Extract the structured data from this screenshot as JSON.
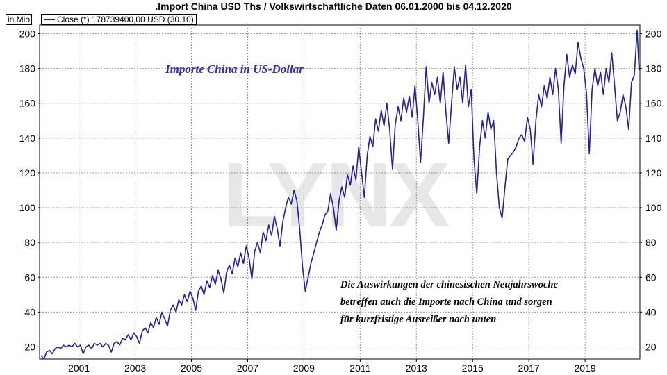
{
  "chart_data": {
    "type": "line",
    "title": ".Import China USD Ths / Volkswirtschaftliche Daten 06.01.2000 bis 04.12.2020",
    "ylabel": "in Mio",
    "legend": "Close (*) 178739400,00 USD (30.10)",
    "ylim": [
      13,
      205
    ],
    "xlim": [
      1999.6,
      2020.95
    ],
    "yticks": [
      20,
      40,
      60,
      80,
      100,
      120,
      140,
      160,
      180,
      200
    ],
    "xticks": [
      "2001",
      "2003",
      "2005",
      "2007",
      "2009",
      "2011",
      "2013",
      "2015",
      "2017",
      "2019"
    ],
    "xtick_values": [
      2001,
      2003,
      2005,
      2007,
      2009,
      2011,
      2013,
      2015,
      2017,
      2019
    ],
    "grid": true,
    "series": [
      {
        "name": "Close (*)",
        "color": "#1f1fa8",
        "points": [
          [
            1999.65,
            15
          ],
          [
            1999.75,
            13
          ],
          [
            1999.85,
            17
          ],
          [
            1999.95,
            18
          ],
          [
            2000.05,
            16
          ],
          [
            2000.15,
            19
          ],
          [
            2000.25,
            20
          ],
          [
            2000.35,
            19
          ],
          [
            2000.45,
            21
          ],
          [
            2000.55,
            20
          ],
          [
            2000.65,
            21
          ],
          [
            2000.75,
            20
          ],
          [
            2000.85,
            22
          ],
          [
            2000.95,
            20
          ],
          [
            2001.05,
            21
          ],
          [
            2001.15,
            16
          ],
          [
            2001.25,
            20
          ],
          [
            2001.35,
            21
          ],
          [
            2001.45,
            19
          ],
          [
            2001.55,
            22
          ],
          [
            2001.65,
            21
          ],
          [
            2001.75,
            22
          ],
          [
            2001.85,
            20
          ],
          [
            2001.95,
            22
          ],
          [
            2002.05,
            21
          ],
          [
            2002.15,
            17
          ],
          [
            2002.25,
            22
          ],
          [
            2002.35,
            23
          ],
          [
            2002.45,
            21
          ],
          [
            2002.55,
            25
          ],
          [
            2002.65,
            24
          ],
          [
            2002.75,
            27
          ],
          [
            2002.85,
            24
          ],
          [
            2002.95,
            28
          ],
          [
            2003.05,
            26
          ],
          [
            2003.15,
            22
          ],
          [
            2003.25,
            29
          ],
          [
            2003.35,
            31
          ],
          [
            2003.45,
            28
          ],
          [
            2003.55,
            34
          ],
          [
            2003.65,
            31
          ],
          [
            2003.75,
            37
          ],
          [
            2003.85,
            33
          ],
          [
            2003.95,
            40
          ],
          [
            2004.05,
            36
          ],
          [
            2004.15,
            32
          ],
          [
            2004.25,
            41
          ],
          [
            2004.35,
            44
          ],
          [
            2004.45,
            40
          ],
          [
            2004.55,
            47
          ],
          [
            2004.65,
            44
          ],
          [
            2004.75,
            50
          ],
          [
            2004.85,
            46
          ],
          [
            2004.95,
            52
          ],
          [
            2005.05,
            48
          ],
          [
            2005.15,
            41
          ],
          [
            2005.25,
            52
          ],
          [
            2005.35,
            55
          ],
          [
            2005.45,
            50
          ],
          [
            2005.55,
            58
          ],
          [
            2005.65,
            54
          ],
          [
            2005.75,
            61
          ],
          [
            2005.85,
            56
          ],
          [
            2005.95,
            64
          ],
          [
            2006.05,
            59
          ],
          [
            2006.15,
            51
          ],
          [
            2006.25,
            63
          ],
          [
            2006.35,
            67
          ],
          [
            2006.45,
            62
          ],
          [
            2006.55,
            71
          ],
          [
            2006.65,
            66
          ],
          [
            2006.75,
            74
          ],
          [
            2006.85,
            68
          ],
          [
            2006.95,
            78
          ],
          [
            2007.05,
            71
          ],
          [
            2007.15,
            59
          ],
          [
            2007.25,
            75
          ],
          [
            2007.35,
            80
          ],
          [
            2007.45,
            74
          ],
          [
            2007.55,
            86
          ],
          [
            2007.65,
            81
          ],
          [
            2007.75,
            90
          ],
          [
            2007.85,
            84
          ],
          [
            2007.95,
            95
          ],
          [
            2008.05,
            88
          ],
          [
            2008.15,
            78
          ],
          [
            2008.25,
            92
          ],
          [
            2008.35,
            100
          ],
          [
            2008.45,
            106
          ],
          [
            2008.55,
            102
          ],
          [
            2008.65,
            110
          ],
          [
            2008.75,
            104
          ],
          [
            2008.85,
            88
          ],
          [
            2008.95,
            66
          ],
          [
            2009.05,
            52
          ],
          [
            2009.15,
            60
          ],
          [
            2009.25,
            68
          ],
          [
            2009.35,
            74
          ],
          [
            2009.45,
            80
          ],
          [
            2009.55,
            86
          ],
          [
            2009.65,
            90
          ],
          [
            2009.75,
            96
          ],
          [
            2009.85,
            98
          ],
          [
            2009.95,
            108
          ],
          [
            2010.05,
            100
          ],
          [
            2010.15,
            87
          ],
          [
            2010.25,
            104
          ],
          [
            2010.35,
            112
          ],
          [
            2010.45,
            106
          ],
          [
            2010.55,
            119
          ],
          [
            2010.65,
            113
          ],
          [
            2010.75,
            124
          ],
          [
            2010.85,
            116
          ],
          [
            2010.95,
            135
          ],
          [
            2011.05,
            120
          ],
          [
            2011.15,
            106
          ],
          [
            2011.25,
            130
          ],
          [
            2011.35,
            141
          ],
          [
            2011.45,
            135
          ],
          [
            2011.55,
            151
          ],
          [
            2011.65,
            144
          ],
          [
            2011.75,
            156
          ],
          [
            2011.85,
            147
          ],
          [
            2011.95,
            160
          ],
          [
            2012.05,
            145
          ],
          [
            2012.15,
            122
          ],
          [
            2012.25,
            148
          ],
          [
            2012.35,
            158
          ],
          [
            2012.45,
            150
          ],
          [
            2012.55,
            163
          ],
          [
            2012.65,
            155
          ],
          [
            2012.75,
            164
          ],
          [
            2012.85,
            152
          ],
          [
            2012.95,
            170
          ],
          [
            2013.05,
            150
          ],
          [
            2013.15,
            126
          ],
          [
            2013.25,
            152
          ],
          [
            2013.35,
            181
          ],
          [
            2013.45,
            160
          ],
          [
            2013.55,
            172
          ],
          [
            2013.65,
            165
          ],
          [
            2013.75,
            175
          ],
          [
            2013.85,
            160
          ],
          [
            2013.95,
            178
          ],
          [
            2014.05,
            155
          ],
          [
            2014.15,
            137
          ],
          [
            2014.25,
            160
          ],
          [
            2014.35,
            181
          ],
          [
            2014.45,
            168
          ],
          [
            2014.55,
            175
          ],
          [
            2014.65,
            160
          ],
          [
            2014.75,
            182
          ],
          [
            2014.85,
            158
          ],
          [
            2014.95,
            168
          ],
          [
            2015.05,
            128
          ],
          [
            2015.15,
            108
          ],
          [
            2015.25,
            135
          ],
          [
            2015.35,
            150
          ],
          [
            2015.45,
            140
          ],
          [
            2015.55,
            155
          ],
          [
            2015.65,
            145
          ],
          [
            2015.75,
            150
          ],
          [
            2015.85,
            120
          ],
          [
            2015.95,
            100
          ],
          [
            2016.05,
            94
          ],
          [
            2016.15,
            112
          ],
          [
            2016.25,
            128
          ],
          [
            2016.35,
            130
          ],
          [
            2016.45,
            132
          ],
          [
            2016.55,
            135
          ],
          [
            2016.65,
            140
          ],
          [
            2016.75,
            142
          ],
          [
            2016.85,
            138
          ],
          [
            2016.95,
            152
          ],
          [
            2017.05,
            145
          ],
          [
            2017.15,
            125
          ],
          [
            2017.25,
            150
          ],
          [
            2017.35,
            165
          ],
          [
            2017.45,
            158
          ],
          [
            2017.55,
            170
          ],
          [
            2017.65,
            163
          ],
          [
            2017.75,
            175
          ],
          [
            2017.85,
            165
          ],
          [
            2017.95,
            180
          ],
          [
            2018.05,
            168
          ],
          [
            2018.15,
            137
          ],
          [
            2018.25,
            170
          ],
          [
            2018.35,
            188
          ],
          [
            2018.45,
            175
          ],
          [
            2018.55,
            182
          ],
          [
            2018.65,
            177
          ],
          [
            2018.75,
            195
          ],
          [
            2018.85,
            186
          ],
          [
            2018.95,
            180
          ],
          [
            2019.05,
            166
          ],
          [
            2019.15,
            131
          ],
          [
            2019.25,
            168
          ],
          [
            2019.35,
            180
          ],
          [
            2019.45,
            170
          ],
          [
            2019.55,
            178
          ],
          [
            2019.65,
            165
          ],
          [
            2019.75,
            180
          ],
          [
            2019.85,
            172
          ],
          [
            2019.95,
            189
          ],
          [
            2020.05,
            170
          ],
          [
            2020.15,
            150
          ],
          [
            2020.25,
            155
          ],
          [
            2020.35,
            165
          ],
          [
            2020.45,
            158
          ],
          [
            2020.55,
            145
          ],
          [
            2020.65,
            172
          ],
          [
            2020.75,
            176
          ],
          [
            2020.85,
            202
          ],
          [
            2020.92,
            179
          ]
        ]
      }
    ]
  },
  "annotations": {
    "title_note": "Importe China in US-Dollar",
    "body_lines": [
      "Die Auswirkungen der chinesischen Neujahrswoche",
      "betreffen auch die Importe nach China und sorgen",
      "für kurzfristige Ausreißer nach unten"
    ],
    "watermark": "LYNX"
  }
}
